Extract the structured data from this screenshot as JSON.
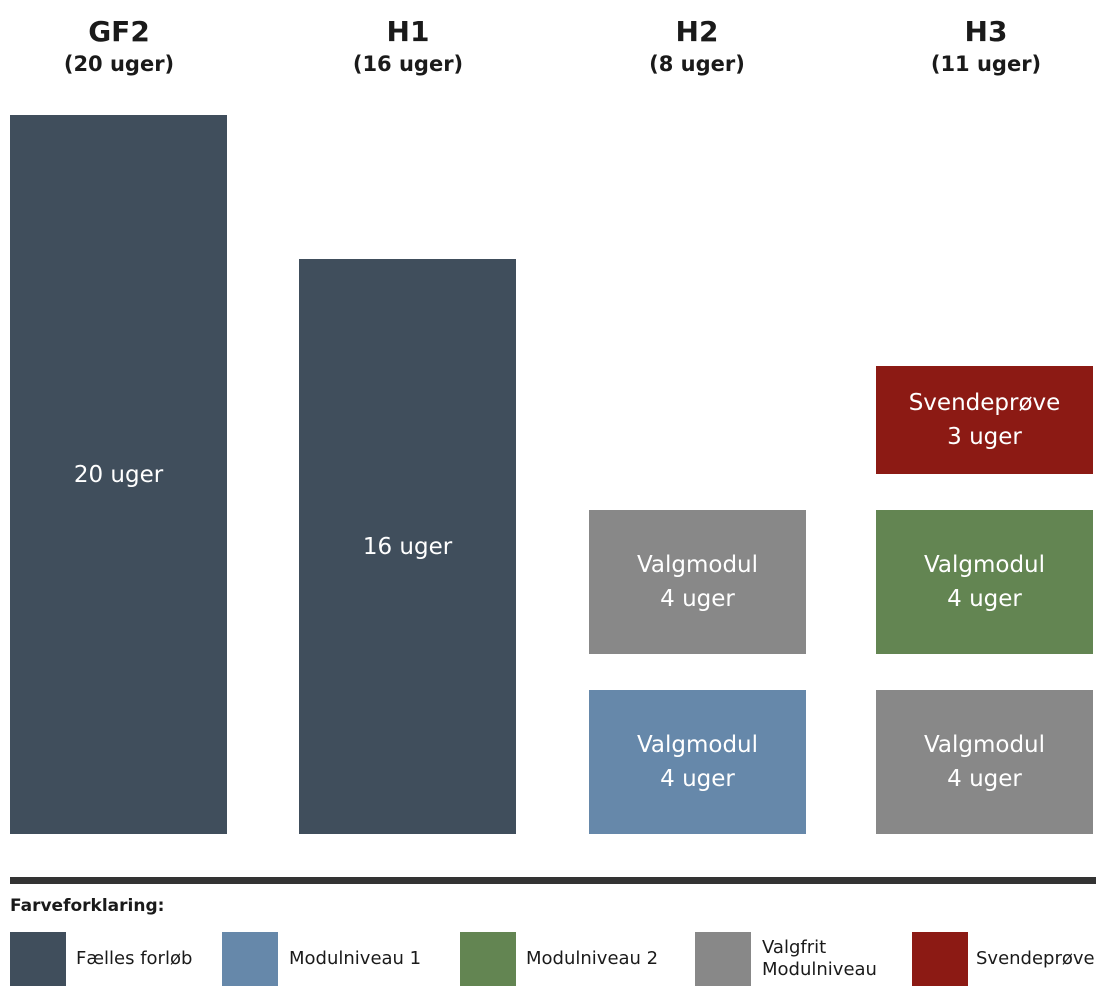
{
  "colors": {
    "faelles": "#404e5c",
    "niveau1": "#6688aa",
    "niveau2": "#638552",
    "valgfrit": "#888888",
    "svendeprove": "#8c1a14"
  },
  "columns": [
    {
      "title": "GF2",
      "subtitle": "(20 uger)"
    },
    {
      "title": "H1",
      "subtitle": "(16 uger)"
    },
    {
      "title": "H2",
      "subtitle": "(8 uger)"
    },
    {
      "title": "H3",
      "subtitle": "(11 uger)"
    }
  ],
  "blocks": {
    "gf2": {
      "line1": "20 uger"
    },
    "h1": {
      "line1": "16 uger"
    },
    "h2_top": {
      "line1": "Valgmodul",
      "line2": "4 uger"
    },
    "h2_bottom": {
      "line1": "Valgmodul",
      "line2": "4 uger"
    },
    "h3_top": {
      "line1": "Svendeprøve",
      "line2": "3 uger"
    },
    "h3_middle": {
      "line1": "Valgmodul",
      "line2": "4 uger"
    },
    "h3_bottom": {
      "line1": "Valgmodul",
      "line2": "4 uger"
    }
  },
  "legend": {
    "title": "Farveforklaring:",
    "items": [
      {
        "label": "Fælles forløb"
      },
      {
        "label": "Modulniveau 1"
      },
      {
        "label": "Modulniveau 2"
      },
      {
        "label_line1": "Valgfrit",
        "label_line2": "Modulniveau"
      },
      {
        "label": "Svendeprøve"
      }
    ]
  }
}
